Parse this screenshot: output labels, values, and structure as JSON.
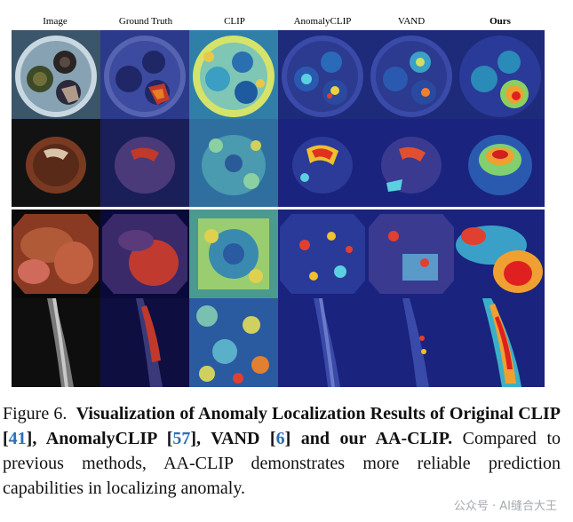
{
  "columns": [
    "Image",
    "Ground Truth",
    "CLIP",
    "AnomalyCLIP",
    "VAND",
    "Ours"
  ],
  "caption": {
    "figure_label": "Figure 6.",
    "title_part1": "Visualization of Anomaly Localization Results of Original CLIP [",
    "ref1": "41",
    "title_part2": "], AnomalyCLIP [",
    "ref2": "57",
    "title_part3": "], VAND [",
    "ref3": "6",
    "title_part4": "] and our AA-CLIP.",
    "body": "Compared to previous methods, AA-CLIP demonstrates more reliable prediction capabilities in localizing anomaly."
  },
  "watermark": "公众号 · AI缝合大王",
  "colors": {
    "heat_low": "#1a237e",
    "heat_mid": "#4dd0e1",
    "heat_high": "#e53935",
    "background_dark": "#111111",
    "ref_link": "#2c6fb8"
  }
}
